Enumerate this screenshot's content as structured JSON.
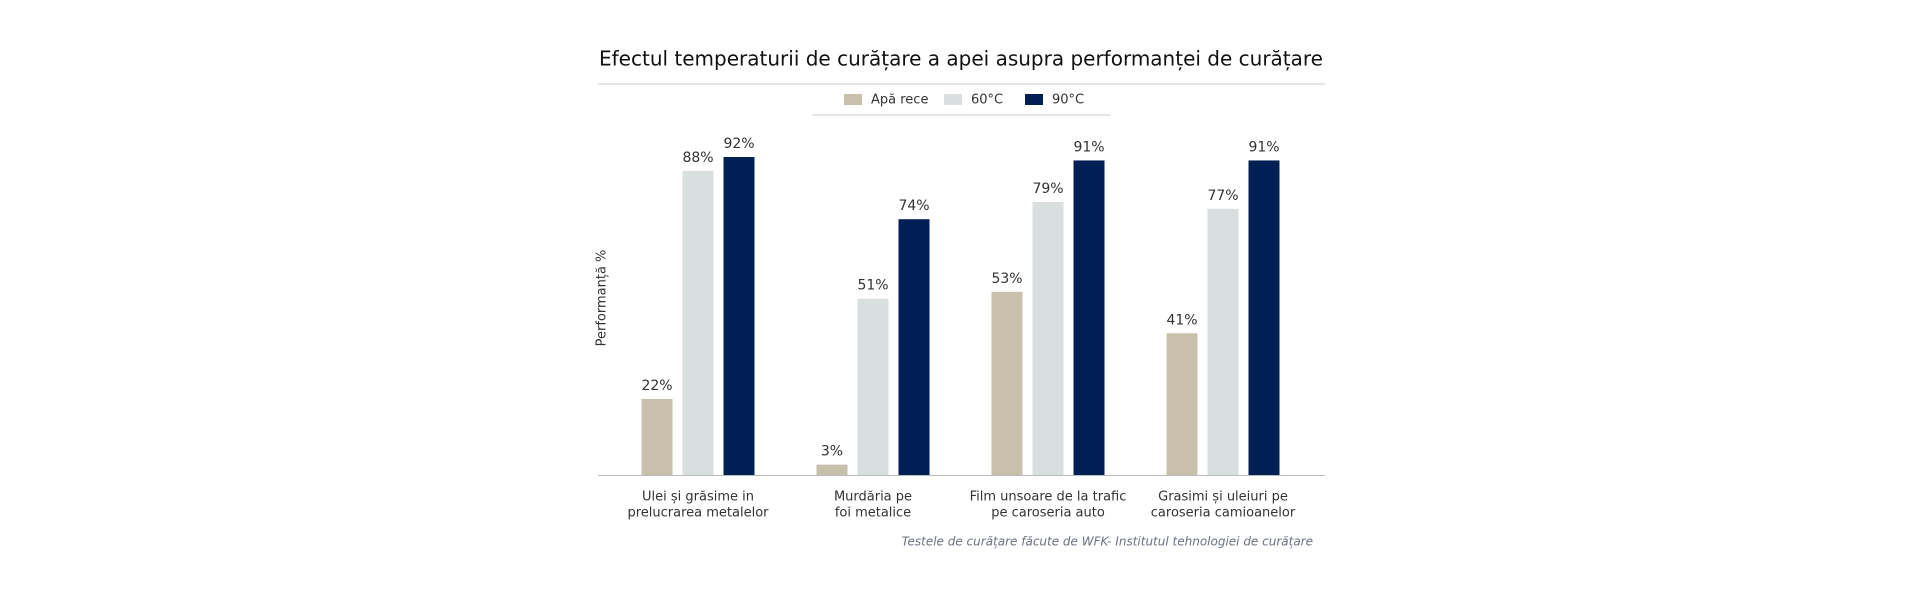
{
  "chart_data": {
    "type": "bar",
    "title": "Efectul temperaturii de curățare a apei asupra performanței de curățare",
    "y_label": "Performanță %",
    "note": "Testele de curățare făcute de WFK- Institutul tehnologiei de curățare",
    "categories": [
      [
        "Ulei și grăsime in",
        "prelucrarea metalelor"
      ],
      [
        "Murdăria pe",
        "foi metalice"
      ],
      [
        "Film unsoare de la trafic",
        "pe caroseria auto"
      ],
      [
        "Grasimi și uleiuri pe",
        "caroseria camioanelor"
      ]
    ],
    "series": [
      {
        "name": "Apă rece",
        "color": "#c8c0aa",
        "values": [
          22,
          3,
          53,
          41
        ],
        "value_labels": [
          "22%",
          "3%",
          "53%",
          "41%"
        ]
      },
      {
        "name": "60°C",
        "color": "#d9dfdf",
        "values": [
          88,
          51,
          79,
          77
        ],
        "value_labels": [
          "88%",
          "51%",
          "79%",
          "77%"
        ]
      },
      {
        "name": "90°C",
        "color": "#001f54",
        "values": [
          92,
          74,
          91,
          91
        ],
        "value_labels": [
          "92%",
          "74%",
          "91%",
          "91%"
        ]
      }
    ],
    "legend": "top"
  }
}
